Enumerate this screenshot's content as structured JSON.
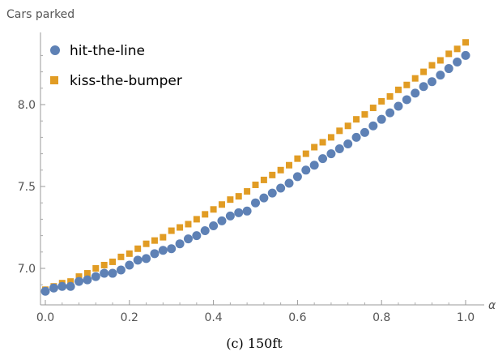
{
  "caption": "(c) 150ft",
  "chart_data": {
    "type": "scatter",
    "title": "",
    "xlabel": "α",
    "ylabel": "Cars parked",
    "xlim": [
      0.0,
      1.0
    ],
    "ylim": [
      6.8,
      8.36
    ],
    "xticks": [
      0.0,
      0.2,
      0.4,
      0.6,
      0.8,
      1.0
    ],
    "xtick_labels": [
      "0.0",
      "0.2",
      "0.4",
      "0.6",
      "0.8",
      "1.0"
    ],
    "yticks": [
      7.0,
      7.5,
      8.0
    ],
    "ytick_labels": [
      "7.0",
      "7.5",
      "8.0"
    ],
    "grid": false,
    "legend_position": "top-left",
    "x": [
      0.0,
      0.02,
      0.04,
      0.06,
      0.08,
      0.1,
      0.12,
      0.14,
      0.16,
      0.18,
      0.2,
      0.22,
      0.24,
      0.26,
      0.28,
      0.3,
      0.32,
      0.34,
      0.36,
      0.38,
      0.4,
      0.42,
      0.44,
      0.46,
      0.48,
      0.5,
      0.52,
      0.54,
      0.56,
      0.58,
      0.6,
      0.62,
      0.64,
      0.66,
      0.68,
      0.7,
      0.72,
      0.74,
      0.76,
      0.78,
      0.8,
      0.82,
      0.84,
      0.86,
      0.88,
      0.9,
      0.92,
      0.94,
      0.96,
      0.98,
      1.0
    ],
    "series": [
      {
        "name": "hit-the-line",
        "marker": "circle",
        "color": "#5e81b5",
        "values": [
          6.86,
          6.88,
          6.89,
          6.89,
          6.92,
          6.93,
          6.95,
          6.97,
          6.97,
          6.99,
          7.02,
          7.05,
          7.06,
          7.09,
          7.11,
          7.12,
          7.15,
          7.18,
          7.2,
          7.23,
          7.26,
          7.29,
          7.32,
          7.34,
          7.35,
          7.4,
          7.43,
          7.46,
          7.49,
          7.52,
          7.56,
          7.6,
          7.63,
          7.67,
          7.7,
          7.73,
          7.76,
          7.8,
          7.83,
          7.87,
          7.91,
          7.95,
          7.99,
          8.03,
          8.07,
          8.11,
          8.14,
          8.18,
          8.22,
          8.26,
          8.3
        ]
      },
      {
        "name": "kiss-the-bumper",
        "marker": "square",
        "color": "#e19c24",
        "values": [
          6.87,
          6.89,
          6.91,
          6.92,
          6.95,
          6.97,
          7.0,
          7.02,
          7.04,
          7.07,
          7.09,
          7.12,
          7.15,
          7.17,
          7.19,
          7.23,
          7.25,
          7.27,
          7.3,
          7.33,
          7.36,
          7.39,
          7.42,
          7.44,
          7.47,
          7.51,
          7.54,
          7.57,
          7.6,
          7.63,
          7.67,
          7.7,
          7.74,
          7.77,
          7.8,
          7.84,
          7.87,
          7.91,
          7.94,
          7.98,
          8.02,
          8.05,
          8.09,
          8.12,
          8.16,
          8.2,
          8.24,
          8.27,
          8.31,
          8.34,
          8.38
        ]
      }
    ]
  }
}
